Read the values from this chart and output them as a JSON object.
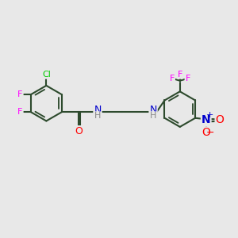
{
  "background_color": "#e8e8e8",
  "bond_color": "#2d4a2d",
  "bond_width": 1.5,
  "cl_color": "#00cc00",
  "f_color": "#ff00ff",
  "o_color": "#ff0000",
  "n_color": "#0000cc",
  "h_color": "#888888",
  "figsize": [
    3.0,
    3.0
  ],
  "dpi": 100,
  "xlim": [
    0,
    12
  ],
  "ylim": [
    0,
    10
  ]
}
